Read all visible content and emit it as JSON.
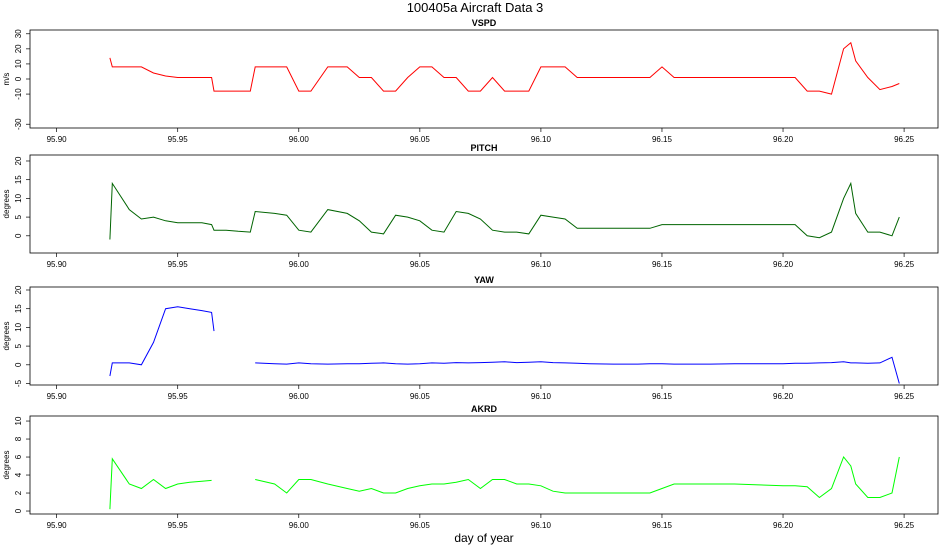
{
  "suptitle": "100405a   Aircraft Data 3",
  "chart_data": [
    {
      "type": "line",
      "title": "VSPD",
      "ylabel": "m/s",
      "x": [
        95.922,
        95.923,
        95.93,
        95.935,
        95.94,
        95.945,
        95.95,
        95.955,
        95.96,
        95.964,
        95.965,
        95.97,
        95.975,
        95.98,
        95.982,
        95.99,
        95.995,
        96.0,
        96.005,
        96.012,
        96.02,
        96.025,
        96.03,
        96.035,
        96.04,
        96.045,
        96.05,
        96.055,
        96.06,
        96.065,
        96.07,
        96.075,
        96.08,
        96.085,
        96.09,
        96.095,
        96.1,
        96.105,
        96.11,
        96.115,
        96.12,
        96.13,
        96.14,
        96.145,
        96.15,
        96.155,
        96.16,
        96.17,
        96.18,
        96.19,
        96.2,
        96.205,
        96.21,
        96.215,
        96.22,
        96.225,
        96.228,
        96.23,
        96.235,
        96.24,
        96.245,
        96.248
      ],
      "series": [
        {
          "name": "VSPD",
          "color": "#ff0000",
          "values": [
            14,
            8,
            8,
            8,
            4,
            2,
            1,
            1,
            1,
            1,
            -8,
            -8,
            -8,
            -8,
            8,
            8,
            8,
            -8,
            -8,
            8,
            8,
            1,
            1,
            -8,
            -8,
            1,
            8,
            8,
            1,
            1,
            -8,
            -8,
            1,
            -8,
            -8,
            -8,
            8,
            8,
            8,
            1,
            1,
            1,
            1,
            1,
            8,
            1,
            1,
            1,
            1,
            1,
            1,
            1,
            -8,
            -8,
            -10,
            20,
            24,
            12,
            1,
            -7,
            -5,
            -3
          ]
        }
      ],
      "xlim": [
        95.889,
        96.264
      ],
      "xticks": [
        {
          "value": 95.9,
          "label": "95.90"
        },
        95.95,
        {
          "value": 96.0,
          "label": "96.00"
        },
        96.05,
        {
          "value": 96.1,
          "label": "96.10"
        },
        96.15,
        {
          "value": 96.2,
          "label": "96.20"
        },
        96.25
      ],
      "ylim": [
        -32.5,
        32.5
      ],
      "yticks": [
        -30,
        -10,
        0,
        10,
        20,
        30
      ]
    },
    {
      "type": "line",
      "title": "PITCH",
      "ylabel": "degrees",
      "x": [
        95.922,
        95.923,
        95.93,
        95.935,
        95.94,
        95.945,
        95.95,
        95.955,
        95.96,
        95.964,
        95.965,
        95.97,
        95.975,
        95.98,
        95.982,
        95.99,
        95.995,
        96.0,
        96.005,
        96.012,
        96.02,
        96.025,
        96.03,
        96.035,
        96.04,
        96.045,
        96.05,
        96.055,
        96.06,
        96.065,
        96.07,
        96.075,
        96.08,
        96.085,
        96.09,
        96.095,
        96.1,
        96.105,
        96.11,
        96.115,
        96.12,
        96.13,
        96.14,
        96.145,
        96.15,
        96.155,
        96.16,
        96.17,
        96.18,
        96.19,
        96.2,
        96.205,
        96.21,
        96.215,
        96.22,
        96.225,
        96.228,
        96.23,
        96.235,
        96.24,
        96.245,
        96.248
      ],
      "series": [
        {
          "name": "PITCH",
          "color": "#006400",
          "values": [
            -1,
            14,
            7,
            4.5,
            5,
            4,
            3.5,
            3.5,
            3.5,
            3,
            1.5,
            1.5,
            1.2,
            1,
            6.5,
            6,
            5.5,
            1.5,
            1,
            7,
            6,
            4,
            1,
            0.5,
            5.5,
            5,
            4,
            1.5,
            1,
            6.5,
            6,
            4.5,
            1.5,
            1,
            1,
            0.5,
            5.5,
            5,
            4.5,
            2,
            2,
            2,
            2,
            2,
            3,
            3,
            3,
            3,
            3,
            3,
            3,
            3,
            0,
            -0.5,
            1,
            10,
            14,
            6,
            1,
            1,
            0,
            5
          ]
        }
      ],
      "xlim": [
        95.889,
        96.264
      ],
      "xticks": [
        {
          "value": 95.9,
          "label": "95.90"
        },
        95.95,
        {
          "value": 96.0,
          "label": "96.00"
        },
        96.05,
        {
          "value": 96.1,
          "label": "96.10"
        },
        96.15,
        {
          "value": 96.2,
          "label": "96.20"
        },
        96.25
      ],
      "ylim": [
        -4.6,
        21.6
      ],
      "yticks": [
        0,
        5,
        10,
        15,
        20
      ]
    },
    {
      "type": "line",
      "title": "YAW",
      "ylabel": "degrees",
      "x": [
        95.922,
        95.923,
        95.93,
        95.935,
        95.94,
        95.945,
        95.95,
        95.955,
        95.96,
        95.964,
        95.965,
        95.97,
        95.975,
        95.98,
        95.982,
        95.99,
        95.995,
        96.0,
        96.005,
        96.012,
        96.02,
        96.025,
        96.03,
        96.035,
        96.04,
        96.045,
        96.05,
        96.055,
        96.06,
        96.065,
        96.07,
        96.075,
        96.08,
        96.085,
        96.09,
        96.095,
        96.1,
        96.105,
        96.11,
        96.115,
        96.12,
        96.13,
        96.14,
        96.145,
        96.15,
        96.155,
        96.16,
        96.17,
        96.18,
        96.19,
        96.2,
        96.205,
        96.21,
        96.215,
        96.22,
        96.225,
        96.228,
        96.23,
        96.235,
        96.24,
        96.245,
        96.248
      ],
      "series": [
        {
          "name": "YAW",
          "color": "#0000ff",
          "values": [
            -3,
            0.5,
            0.5,
            0,
            6,
            15,
            15.5,
            15,
            14.5,
            14,
            9,
            null,
            null,
            null,
            0.5,
            0.3,
            0.2,
            0.5,
            0.3,
            0.2,
            0.3,
            0.3,
            0.4,
            0.5,
            0.3,
            0.2,
            0.3,
            0.5,
            0.4,
            0.6,
            0.5,
            0.6,
            0.7,
            0.8,
            0.6,
            0.7,
            0.8,
            0.6,
            0.5,
            0.4,
            0.3,
            0.2,
            0.2,
            0.3,
            0.3,
            0.2,
            0.2,
            0.2,
            0.3,
            0.3,
            0.3,
            0.4,
            0.4,
            0.5,
            0.6,
            0.8,
            0.5,
            0.5,
            0.4,
            0.5,
            2,
            -5
          ]
        }
      ],
      "xlim": [
        95.889,
        96.264
      ],
      "xticks": [
        {
          "value": 95.9,
          "label": "95.90"
        },
        95.95,
        {
          "value": 96.0,
          "label": "96.00"
        },
        96.05,
        {
          "value": 96.1,
          "label": "96.10"
        },
        96.15,
        {
          "value": 96.2,
          "label": "96.20"
        },
        96.25
      ],
      "ylim": [
        -5.4,
        20.8
      ],
      "yticks": [
        -5,
        0,
        5,
        10,
        15,
        20
      ]
    },
    {
      "type": "line",
      "title": "AKRD",
      "ylabel": "degrees",
      "xlabel": "day of year",
      "x": [
        95.922,
        95.923,
        95.93,
        95.935,
        95.94,
        95.945,
        95.95,
        95.955,
        95.96,
        95.964,
        95.965,
        95.97,
        95.975,
        95.98,
        95.982,
        95.99,
        95.995,
        96.0,
        96.005,
        96.012,
        96.02,
        96.025,
        96.03,
        96.035,
        96.04,
        96.045,
        96.05,
        96.055,
        96.06,
        96.065,
        96.07,
        96.075,
        96.08,
        96.085,
        96.09,
        96.095,
        96.1,
        96.105,
        96.11,
        96.115,
        96.12,
        96.13,
        96.14,
        96.145,
        96.15,
        96.155,
        96.16,
        96.17,
        96.18,
        96.19,
        96.2,
        96.205,
        96.21,
        96.215,
        96.22,
        96.225,
        96.228,
        96.23,
        96.235,
        96.24,
        96.245,
        96.248
      ],
      "series": [
        {
          "name": "AKRD",
          "color": "#00ff00",
          "values": [
            0.2,
            5.8,
            3,
            2.5,
            3.5,
            2.5,
            3,
            3.2,
            3.3,
            3.4,
            null,
            null,
            null,
            null,
            3.5,
            3,
            2,
            3.5,
            3.5,
            3,
            2.5,
            2.2,
            2.5,
            2,
            2,
            2.5,
            2.8,
            3,
            3,
            3.2,
            3.5,
            2.5,
            3.5,
            3.5,
            3,
            3,
            2.8,
            2.2,
            2,
            2,
            2,
            2,
            2,
            2,
            2.5,
            3,
            3,
            3,
            3,
            2.9,
            2.8,
            2.8,
            2.7,
            1.5,
            2.5,
            6,
            5,
            3,
            1.5,
            1.5,
            2,
            6
          ]
        }
      ],
      "xlim": [
        95.889,
        96.264
      ],
      "xticks": [
        {
          "value": 95.9,
          "label": "95.90"
        },
        95.95,
        {
          "value": 96.0,
          "label": "96.00"
        },
        96.05,
        {
          "value": 96.1,
          "label": "96.10"
        },
        96.15,
        {
          "value": 96.2,
          "label": "96.20"
        },
        96.25
      ],
      "ylim": [
        -0.33,
        10.56
      ],
      "yticks": [
        0,
        2,
        4,
        6,
        8,
        10
      ]
    }
  ]
}
